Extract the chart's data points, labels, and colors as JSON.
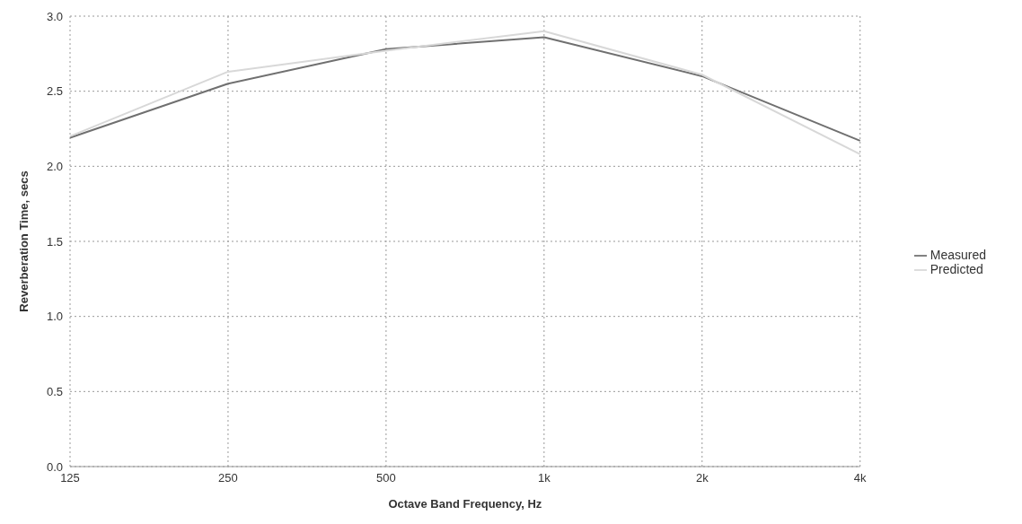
{
  "chart_data": {
    "type": "line",
    "xlabel": "Octave Band Frequency, Hz",
    "ylabel": "Reverberation Time, secs",
    "categories": [
      "125",
      "250",
      "500",
      "1k",
      "2k",
      "4k"
    ],
    "series": [
      {
        "name": "Measured",
        "color": "#707070",
        "values": [
          2.19,
          2.55,
          2.78,
          2.86,
          2.6,
          2.17
        ]
      },
      {
        "name": "Predicted",
        "color": "#d8d8d8",
        "values": [
          2.2,
          2.63,
          2.77,
          2.9,
          2.61,
          2.08
        ]
      }
    ],
    "ylim": [
      0,
      3
    ],
    "yticks": [
      {
        "value": 0,
        "label": "0.0"
      },
      {
        "value": 0.5,
        "label": "0.5"
      },
      {
        "value": 1,
        "label": "1.0"
      },
      {
        "value": 1.5,
        "label": "1.5"
      },
      {
        "value": 2,
        "label": "2.0"
      },
      {
        "value": 2.5,
        "label": "2.5"
      },
      {
        "value": 3,
        "label": "3.0"
      }
    ],
    "grid": true,
    "legend": "right",
    "marker": "none",
    "line_style": "solid"
  }
}
